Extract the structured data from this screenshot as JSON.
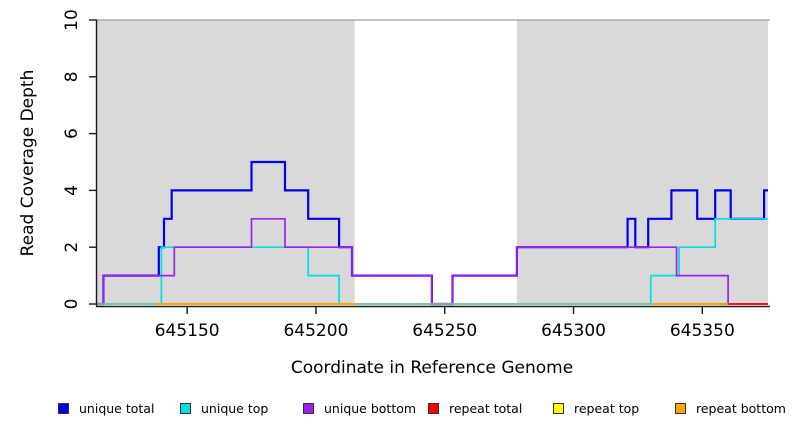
{
  "chart_data": {
    "type": "line",
    "style": "step-after",
    "title": "",
    "xlabel": "Coordinate in Reference Genome",
    "ylabel": "Read Coverage Depth",
    "xlim": [
      645115,
      645375.5
    ],
    "ylim": [
      0,
      10
    ],
    "xticks": [
      645150,
      645200,
      645250,
      645300,
      645350
    ],
    "yticks": [
      0,
      2,
      4,
      6,
      8,
      10
    ],
    "grid": false,
    "legend_position": "bottom",
    "plot_bg": "#ffffff",
    "shade_color": "#d9d9d9",
    "topline_color": "#9e9e9e",
    "axis_color": "#1a1a1a",
    "shaded_regions": [
      {
        "x0": 645115,
        "x1": 645215
      },
      {
        "x0": 645278,
        "x1": 645375.5
      }
    ],
    "baseline": {
      "label": "zero-coverage-baseline",
      "color": "#8fbc8f",
      "width": 1.5,
      "segments": [
        [
          [
            645115,
            0
          ],
          [
            645375.5,
            0
          ]
        ]
      ]
    },
    "series": [
      {
        "name": "unique total",
        "color": "#0000ee",
        "width": 2.2,
        "segments": [
          [
            [
              645115,
              0
            ],
            [
              645117.5,
              1
            ],
            [
              645139,
              2
            ],
            [
              645141,
              3
            ],
            [
              645144,
              4
            ],
            [
              645175,
              5
            ],
            [
              645188,
              4
            ],
            [
              645197,
              3
            ],
            [
              645209,
              2
            ],
            [
              645214,
              1
            ],
            [
              645245,
              0
            ],
            [
              645253,
              1
            ],
            [
              645278,
              2
            ],
            [
              645321,
              3
            ],
            [
              645324,
              2
            ],
            [
              645329,
              3
            ],
            [
              645338,
              4
            ],
            [
              645348,
              3
            ],
            [
              645355,
              4
            ],
            [
              645361,
              3
            ],
            [
              645374,
              4
            ],
            [
              645375.5,
              4
            ]
          ]
        ]
      },
      {
        "name": "unique top",
        "color": "#00e0e0",
        "width": 1.7,
        "segments": [
          [
            [
              645115,
              0
            ],
            [
              645140,
              2
            ],
            [
              645197,
              1
            ],
            [
              645209,
              0
            ],
            [
              645330,
              1
            ],
            [
              645341,
              2
            ],
            [
              645355,
              3
            ],
            [
              645375.5,
              3
            ]
          ]
        ]
      },
      {
        "name": "unique bottom",
        "color": "#a020f0",
        "width": 1.7,
        "segments": [
          [
            [
              645115,
              0
            ],
            [
              645117.5,
              1
            ],
            [
              645145,
              2
            ],
            [
              645175,
              3
            ],
            [
              645188,
              2
            ],
            [
              645214,
              1
            ],
            [
              645245,
              0
            ],
            [
              645253,
              1
            ],
            [
              645278,
              2
            ],
            [
              645340,
              1
            ],
            [
              645360,
              0
            ],
            [
              645375.5,
              0
            ]
          ]
        ]
      },
      {
        "name": "repeat total",
        "color": "#ff0000",
        "width": 1.8,
        "segments": [
          [
            [
              645360,
              0
            ],
            [
              645375.5,
              0
            ]
          ]
        ]
      },
      {
        "name": "repeat top",
        "color": "#ffff00",
        "width": 1.8,
        "segments": [
          [
            [
              645138,
              0
            ],
            [
              645215,
              0
            ]
          ],
          [
            [
              645331,
              0
            ],
            [
              645360,
              0
            ]
          ]
        ]
      },
      {
        "name": "repeat bottom",
        "color": "#ffa500",
        "width": 2.0,
        "segments": [
          [
            [
              645138,
              0
            ],
            [
              645215,
              0
            ]
          ],
          [
            [
              645331,
              0
            ],
            [
              645360,
              0
            ]
          ]
        ]
      }
    ]
  },
  "legend_x_positions": [
    58,
    180,
    303,
    428,
    553,
    675
  ]
}
